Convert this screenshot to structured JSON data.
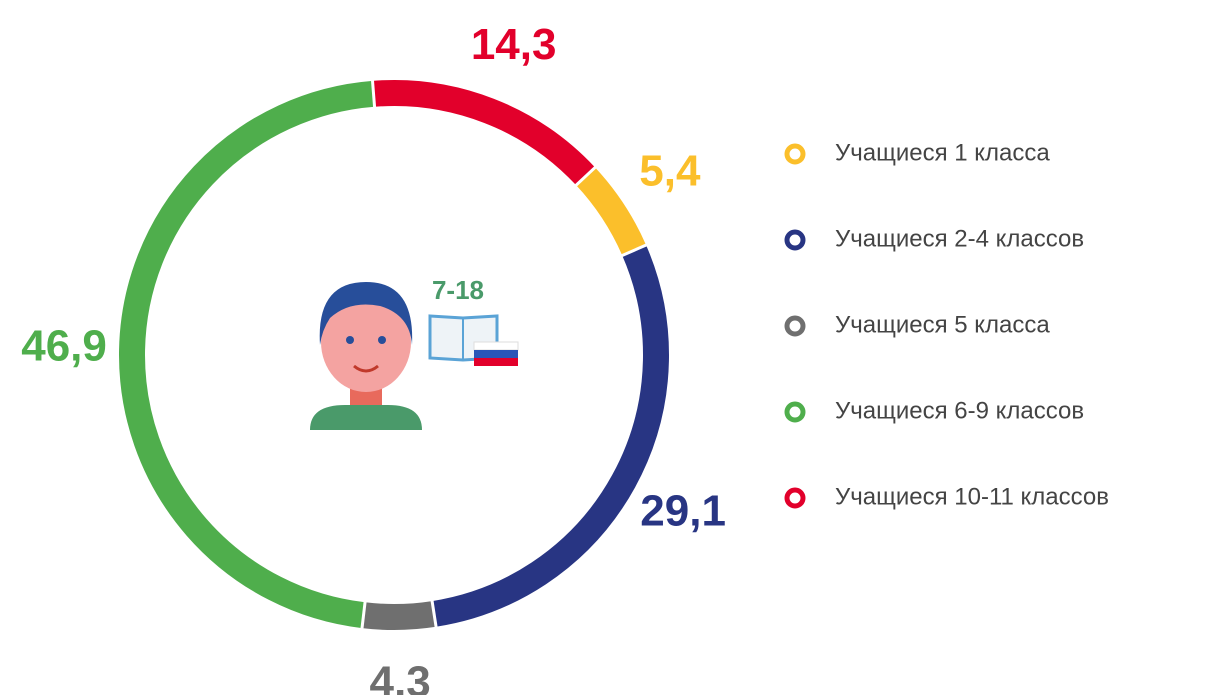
{
  "chart_data": {
    "type": "donut",
    "center_label": "7-18",
    "series": [
      {
        "name": "Учащиеся 1 класса",
        "color": "#fbbf2b",
        "value": 5.4,
        "value_label": "5,4"
      },
      {
        "name": "Учащиеся 2-4 классов",
        "color": "#283583",
        "value": 29.1,
        "value_label": "29,1"
      },
      {
        "name": "Учащиеся 5 класса",
        "color": "#6f6f6f",
        "value": 4.3,
        "value_label": "4,3"
      },
      {
        "name": "Учащиеся 6-9 классов",
        "color": "#4fae4c",
        "value": 46.9,
        "value_label": "46,9"
      },
      {
        "name": "Учащиеся 10-11 классов",
        "color": "#e2002b",
        "value": 14.3,
        "value_label": "14,3"
      }
    ]
  }
}
